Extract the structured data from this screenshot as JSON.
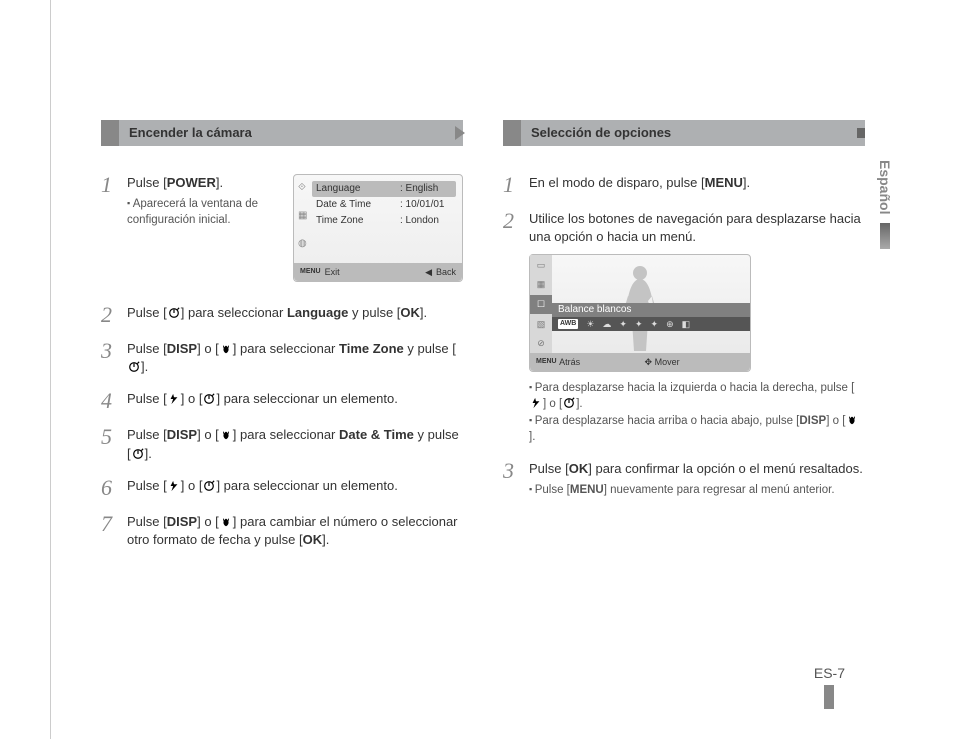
{
  "page": {
    "number": "ES-7",
    "language_tab": "Español"
  },
  "left": {
    "header": "Encender la cámara",
    "lcd": {
      "rows": [
        {
          "k": "Language",
          "v": ": English",
          "hi": true
        },
        {
          "k": "Date & Time",
          "v": ": 10/01/01"
        },
        {
          "k": "Time Zone",
          "v": ": London"
        }
      ],
      "bar_left_icon": "MENU",
      "bar_left": "Exit",
      "bar_right_icon": "◀",
      "bar_right": "Back"
    },
    "steps": [
      {
        "n": "1",
        "text_pre": "Pulse [",
        "bold1": "POWER",
        "text_post": "].",
        "sub": [
          "Aparecerá la ventana de configuración inicial."
        ]
      },
      {
        "n": "2",
        "parts": [
          "Pulse [",
          {
            "icon": "timer"
          },
          "] para seleccionar ",
          {
            "b": "Language"
          },
          " y pulse [",
          {
            "b": "OK"
          },
          "]."
        ]
      },
      {
        "n": "3",
        "parts": [
          "Pulse [",
          {
            "b": "DISP"
          },
          "] o [",
          {
            "icon": "macro"
          },
          "] para seleccionar ",
          {
            "b": "Time Zone"
          },
          " y pulse [",
          {
            "icon": "timer"
          },
          "]."
        ]
      },
      {
        "n": "4",
        "parts": [
          "Pulse [",
          {
            "icon": "flash"
          },
          "] o [",
          {
            "icon": "timer"
          },
          "] para seleccionar un elemento."
        ]
      },
      {
        "n": "5",
        "parts": [
          "Pulse [",
          {
            "b": "DISP"
          },
          "] o [",
          {
            "icon": "macro"
          },
          "] para seleccionar ",
          {
            "b": "Date & Time"
          },
          " y pulse [",
          {
            "icon": "timer"
          },
          "]."
        ]
      },
      {
        "n": "6",
        "parts": [
          "Pulse [",
          {
            "icon": "flash"
          },
          "] o [",
          {
            "icon": "timer"
          },
          "] para seleccionar un elemento."
        ]
      },
      {
        "n": "7",
        "parts": [
          "Pulse [",
          {
            "b": "DISP"
          },
          "] o [",
          {
            "icon": "macro"
          },
          "] para cambiar el número o seleccionar otro formato de fecha y pulse [",
          {
            "b": "OK"
          },
          "]."
        ]
      }
    ]
  },
  "right": {
    "header": "Selección de opciones",
    "steps": [
      {
        "n": "1",
        "parts": [
          "En el modo de disparo, pulse [",
          {
            "b": "MENU"
          },
          "]."
        ]
      },
      {
        "n": "2",
        "parts": [
          "Utilice los botones de navegación para desplazarse hacia una opción o hacia un menú."
        ],
        "lcd": {
          "label": "Balance blancos",
          "bar_left_icon": "MENU",
          "bar_left": "Atrás",
          "bar_mid_icon": "✥",
          "bar_mid": "Mover"
        },
        "sub_parts": [
          [
            "Para desplazarse hacia la izquierda o hacia la derecha, pulse [",
            {
              "icon": "flash"
            },
            "] o [",
            {
              "icon": "timer"
            },
            "]."
          ],
          [
            "Para desplazarse hacia arriba o hacia abajo, pulse [",
            {
              "b": "DISP"
            },
            "] o [",
            {
              "icon": "macro"
            },
            "]."
          ]
        ]
      },
      {
        "n": "3",
        "parts": [
          "Pulse [",
          {
            "b": "OK"
          },
          "] para confirmar la opción o el menú resaltados."
        ],
        "sub_parts": [
          [
            "Pulse [",
            {
              "b": "MENU"
            },
            "] nuevamente para regresar al menú anterior."
          ]
        ]
      }
    ]
  },
  "icons": {
    "timer": "timer-icon",
    "flash": "flash-icon",
    "macro": "macro-icon"
  },
  "colors": {
    "header_bg": "#aeb0b2",
    "header_tab": "#888888",
    "step_num": "#888888",
    "lcd_border": "#bbbbbb",
    "lcd_highlight": "#bbbbbb",
    "text": "#333333"
  }
}
